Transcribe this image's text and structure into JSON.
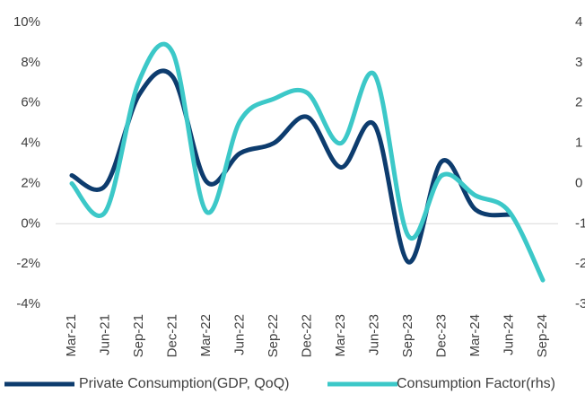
{
  "chart_data": {
    "type": "line",
    "categories": [
      "Mar-21",
      "Jun-21",
      "Sep-21",
      "Dec-21",
      "Mar-22",
      "Jun-22",
      "Sep-22",
      "Dec-22",
      "Mar-23",
      "Jun-23",
      "Sep-23",
      "Dec-23",
      "Mar-24",
      "Jun-24",
      "Sep-24"
    ],
    "series": [
      {
        "name": "Private Consumption(GDP, QoQ)",
        "color": "#0d3c6e",
        "values": [
          2.4,
          1.9,
          6.4,
          7.3,
          2.1,
          3.5,
          4.0,
          5.3,
          2.8,
          4.9,
          -1.9,
          3.1,
          0.7,
          0.45,
          null
        ]
      },
      {
        "name": "Consumption Factor(rhs)",
        "color": "#3cc8c8",
        "axis": "y2",
        "values": [
          0,
          -0.7,
          2.55,
          3.25,
          -0.7,
          1.55,
          2.1,
          2.25,
          1.0,
          2.7,
          -1.3,
          0.2,
          -0.3,
          -0.7,
          -2.4
        ]
      }
    ],
    "ylim": [
      -4,
      10
    ],
    "yticks": [
      {
        "value": -4,
        "label": "-4%"
      },
      {
        "value": -2,
        "label": "-2%"
      },
      {
        "value": 0,
        "label": "0%"
      },
      {
        "value": 2,
        "label": "2%"
      },
      {
        "value": 4,
        "label": "4%"
      },
      {
        "value": 6,
        "label": "6%"
      },
      {
        "value": 8,
        "label": "8%"
      },
      {
        "value": 10,
        "label": "10%"
      }
    ],
    "y2lim": [
      -3,
      4
    ],
    "y2ticks": [
      -3,
      -2,
      -1,
      0,
      1,
      2,
      3,
      4
    ],
    "grid": false,
    "legend": "bottom"
  }
}
